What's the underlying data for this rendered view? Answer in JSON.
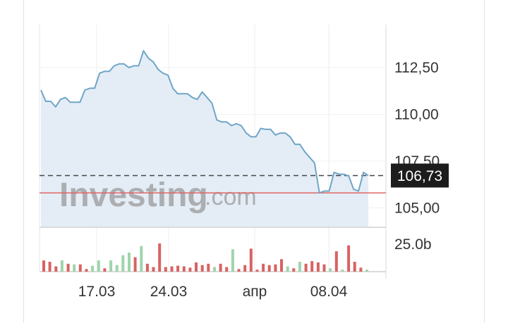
{
  "watermark": {
    "brand": "Investing",
    "suffix": ".com"
  },
  "chart_data": {
    "type": "area",
    "price": {
      "y_ticks": [
        112.5,
        110.0,
        107.5,
        105.0
      ],
      "y_tick_labels": [
        "112,50",
        "110,00",
        "107,50",
        "105,00"
      ],
      "ylim": [
        104.0,
        114.8
      ],
      "values": [
        111.3,
        110.7,
        110.7,
        110.4,
        110.8,
        110.9,
        110.65,
        110.65,
        110.65,
        111.3,
        111.4,
        111.4,
        112.2,
        112.3,
        112.3,
        112.6,
        112.7,
        112.7,
        112.5,
        112.6,
        112.6,
        113.4,
        113.0,
        112.8,
        112.4,
        112.2,
        112.1,
        111.4,
        111.1,
        111.1,
        111.1,
        110.9,
        110.8,
        111.2,
        110.9,
        110.6,
        109.7,
        109.6,
        109.6,
        109.4,
        109.5,
        109.4,
        109.0,
        108.8,
        108.8,
        109.25,
        109.2,
        109.2,
        108.9,
        109.0,
        109.0,
        108.8,
        108.4,
        108.4,
        108.0,
        107.7,
        107.4,
        105.8,
        105.9,
        105.9,
        106.9,
        106.8,
        106.8,
        106.7,
        106.0,
        105.9,
        106.9,
        106.73
      ],
      "current_value": 106.73,
      "current_label": "106,73",
      "reference_line": 105.8,
      "line_color": "#6fa5c8",
      "fill_color": "#e4edf6",
      "reference_color": "#e06565",
      "current_line_color": "#444444"
    },
    "volume": {
      "y_tick_labels": [
        "25.0b"
      ],
      "up_color": "#9fd4ad",
      "down_color": "#d96262",
      "bars": [
        {
          "v": 17,
          "up": false
        },
        {
          "v": 15,
          "up": false
        },
        {
          "v": 8,
          "up": false
        },
        {
          "v": 17,
          "up": true
        },
        {
          "v": 12,
          "up": false
        },
        {
          "v": 11,
          "up": true
        },
        {
          "v": 11,
          "up": false
        },
        {
          "v": 4,
          "up": false
        },
        {
          "v": 9,
          "up": true
        },
        {
          "v": 17,
          "up": true
        },
        {
          "v": 5,
          "up": false
        },
        {
          "v": 17,
          "up": true
        },
        {
          "v": 10,
          "up": true
        },
        {
          "v": 25,
          "up": true
        },
        {
          "v": 29,
          "up": true
        },
        {
          "v": 22,
          "up": false
        },
        {
          "v": 39,
          "up": true
        },
        {
          "v": 12,
          "up": false
        },
        {
          "v": 7,
          "up": false
        },
        {
          "v": 43,
          "up": false
        },
        {
          "v": 7,
          "up": false
        },
        {
          "v": 8,
          "up": false
        },
        {
          "v": 9,
          "up": false
        },
        {
          "v": 8,
          "up": false
        },
        {
          "v": 6,
          "up": false
        },
        {
          "v": 14,
          "up": false
        },
        {
          "v": 10,
          "up": false
        },
        {
          "v": 12,
          "up": false
        },
        {
          "v": 7,
          "up": true
        },
        {
          "v": 12,
          "up": false
        },
        {
          "v": 7,
          "up": false
        },
        {
          "v": 34,
          "up": true
        },
        {
          "v": 4,
          "up": false
        },
        {
          "v": 10,
          "up": false
        },
        {
          "v": 35,
          "up": false
        },
        {
          "v": 3,
          "up": false
        },
        {
          "v": 12,
          "up": false
        },
        {
          "v": 10,
          "up": false
        },
        {
          "v": 11,
          "up": false
        },
        {
          "v": 19,
          "up": false
        },
        {
          "v": 8,
          "up": true
        },
        {
          "v": 5,
          "up": false
        },
        {
          "v": 15,
          "up": true
        },
        {
          "v": 12,
          "up": false
        },
        {
          "v": 16,
          "up": false
        },
        {
          "v": 14,
          "up": false
        },
        {
          "v": 11,
          "up": false
        },
        {
          "v": 5,
          "up": true
        },
        {
          "v": 31,
          "up": false
        },
        {
          "v": 3,
          "up": true
        },
        {
          "v": 40,
          "up": false
        },
        {
          "v": 15,
          "up": false
        },
        {
          "v": 6,
          "up": false
        },
        {
          "v": 3,
          "up": true
        }
      ],
      "vmax": 45
    },
    "x_tick_labels": [
      "17.03",
      "24.03",
      "апр",
      "08.04"
    ],
    "grid": true
  }
}
